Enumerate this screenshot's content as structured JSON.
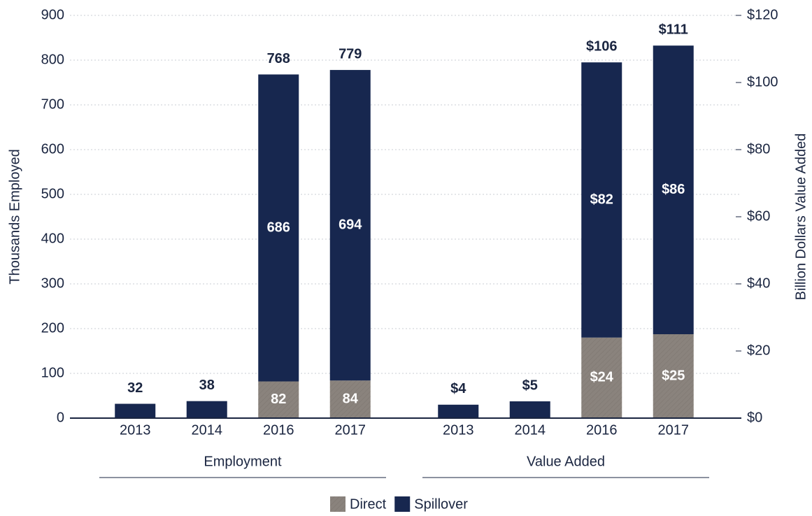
{
  "chart_data": {
    "type": "bar",
    "stacked": true,
    "ylabel": "Thousands Employed",
    "y2label": "Billion Dollars Value Added",
    "ylim": [
      0,
      900
    ],
    "yticks": [
      0,
      100,
      200,
      300,
      400,
      500,
      600,
      700,
      800,
      900
    ],
    "y2lim": [
      0,
      120
    ],
    "y2ticks": [
      {
        "value": 0,
        "label": "$0"
      },
      {
        "value": 20,
        "label": "$20"
      },
      {
        "value": 40,
        "label": "$40"
      },
      {
        "value": 60,
        "label": "$60"
      },
      {
        "value": 80,
        "label": "$80"
      },
      {
        "value": 100,
        "label": "$100"
      },
      {
        "value": 120,
        "label": "$120"
      }
    ],
    "grid": true,
    "legend": "bottom",
    "groups": [
      {
        "name": "Employment",
        "axis": "y",
        "categories": [
          "2013",
          "2014",
          "2016",
          "2017"
        ],
        "series": [
          {
            "name": "Direct",
            "color": "#8a837d",
            "values": [
              null,
              null,
              82,
              84
            ]
          },
          {
            "name": "Spillover",
            "color": "#17274f",
            "values": [
              32,
              38,
              686,
              694
            ]
          }
        ],
        "totals": [
          32,
          38,
          768,
          779
        ]
      },
      {
        "name": "Value Added",
        "axis": "y2",
        "categories": [
          "2013",
          "2014",
          "2016",
          "2017"
        ],
        "series": [
          {
            "name": "Direct",
            "color": "#8a837d",
            "values": [
              null,
              null,
              24,
              25
            ],
            "value_labels": [
              null,
              null,
              "$24",
              "$25"
            ]
          },
          {
            "name": "Spillover",
            "color": "#17274f",
            "values": [
              4,
              5,
              82,
              86
            ],
            "value_labels": [
              "$4",
              "$5",
              "$82",
              "$86"
            ]
          }
        ],
        "totals": [
          4,
          5,
          106,
          111
        ],
        "total_labels": [
          "$4",
          "$5",
          "$106",
          "$111"
        ]
      }
    ]
  }
}
